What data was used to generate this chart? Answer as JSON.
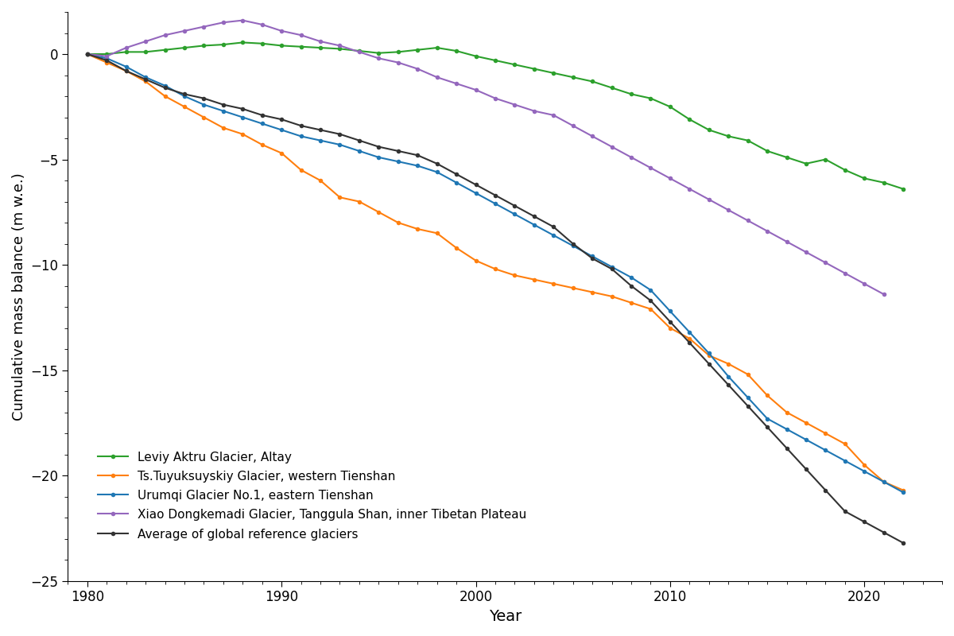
{
  "xlabel": "Year",
  "ylabel": "Cumulative mass balance (m w.e.)",
  "xlim": [
    1979,
    2024
  ],
  "ylim": [
    -25,
    2
  ],
  "yticks": [
    0,
    -5,
    -10,
    -15,
    -20,
    -25
  ],
  "xticks": [
    1980,
    1990,
    2000,
    2010,
    2020
  ],
  "background_color": "#ffffff",
  "series": [
    {
      "key": "leviy",
      "label": "Leviy Aktru Glacier, Altay",
      "color": "#2ca02c",
      "years": [
        1980,
        1981,
        1982,
        1983,
        1984,
        1985,
        1986,
        1987,
        1988,
        1989,
        1990,
        1991,
        1992,
        1993,
        1994,
        1995,
        1996,
        1997,
        1998,
        1999,
        2000,
        2001,
        2002,
        2003,
        2004,
        2005,
        2006,
        2007,
        2008,
        2009,
        2010,
        2011,
        2012,
        2013,
        2014,
        2015,
        2016,
        2017,
        2018,
        2019,
        2020,
        2021,
        2022
      ],
      "values": [
        0.0,
        0.0,
        0.1,
        0.1,
        0.2,
        0.3,
        0.4,
        0.45,
        0.55,
        0.5,
        0.4,
        0.35,
        0.3,
        0.25,
        0.15,
        0.05,
        0.1,
        0.2,
        0.3,
        0.15,
        -0.1,
        -0.3,
        -0.5,
        -0.7,
        -0.9,
        -1.1,
        -1.3,
        -1.6,
        -1.9,
        -2.1,
        -2.5,
        -3.1,
        -3.6,
        -3.9,
        -4.1,
        -4.6,
        -4.9,
        -5.2,
        -5.0,
        -5.5,
        -5.9,
        -6.1,
        -6.4
      ]
    },
    {
      "key": "tuyuk",
      "label": "Ts.Tuyuksuyskiy Glacier, western Tienshan",
      "color": "#ff7f0e",
      "years": [
        1980,
        1981,
        1982,
        1983,
        1984,
        1985,
        1986,
        1987,
        1988,
        1989,
        1990,
        1991,
        1992,
        1993,
        1994,
        1995,
        1996,
        1997,
        1998,
        1999,
        2000,
        2001,
        2002,
        2003,
        2004,
        2005,
        2006,
        2007,
        2008,
        2009,
        2010,
        2011,
        2012,
        2013,
        2014,
        2015,
        2016,
        2017,
        2018,
        2019,
        2020,
        2021,
        2022
      ],
      "values": [
        0.0,
        -0.4,
        -0.8,
        -1.3,
        -2.0,
        -2.5,
        -3.0,
        -3.5,
        -3.8,
        -4.3,
        -4.7,
        -5.5,
        -6.0,
        -6.8,
        -7.0,
        -7.5,
        -8.0,
        -8.3,
        -8.5,
        -9.2,
        -9.8,
        -10.2,
        -10.5,
        -10.7,
        -10.9,
        -11.1,
        -11.3,
        -11.5,
        -11.8,
        -12.1,
        -13.0,
        -13.5,
        -14.3,
        -14.7,
        -15.2,
        -16.2,
        -17.0,
        -17.5,
        -18.0,
        -18.5,
        -19.5,
        -20.3,
        -20.7
      ]
    },
    {
      "key": "urumqi",
      "label": "Urumqi Glacier No.1, eastern Tienshan",
      "color": "#1f77b4",
      "years": [
        1980,
        1981,
        1982,
        1983,
        1984,
        1985,
        1986,
        1987,
        1988,
        1989,
        1990,
        1991,
        1992,
        1993,
        1994,
        1995,
        1996,
        1997,
        1998,
        1999,
        2000,
        2001,
        2002,
        2003,
        2004,
        2005,
        2006,
        2007,
        2008,
        2009,
        2010,
        2011,
        2012,
        2013,
        2014,
        2015,
        2016,
        2017,
        2018,
        2019,
        2020,
        2021,
        2022
      ],
      "values": [
        0.0,
        -0.2,
        -0.6,
        -1.1,
        -1.5,
        -2.0,
        -2.4,
        -2.7,
        -3.0,
        -3.3,
        -3.6,
        -3.9,
        -4.1,
        -4.3,
        -4.6,
        -4.9,
        -5.1,
        -5.3,
        -5.6,
        -6.1,
        -6.6,
        -7.1,
        -7.6,
        -8.1,
        -8.6,
        -9.1,
        -9.6,
        -10.1,
        -10.6,
        -11.2,
        -12.2,
        -13.2,
        -14.2,
        -15.3,
        -16.3,
        -17.3,
        -17.8,
        -18.3,
        -18.8,
        -19.3,
        -19.8,
        -20.3,
        -20.8
      ]
    },
    {
      "key": "xiao",
      "label": "Xiao Dongkemadi Glacier, Tanggula Shan, inner Tibetan Plateau",
      "color": "#9467bd",
      "years": [
        1980,
        1981,
        1982,
        1983,
        1984,
        1985,
        1986,
        1987,
        1988,
        1989,
        1990,
        1991,
        1992,
        1993,
        1994,
        1995,
        1996,
        1997,
        1998,
        1999,
        2000,
        2001,
        2002,
        2003,
        2004,
        2005,
        2006,
        2007,
        2008,
        2009,
        2010,
        2011,
        2012,
        2013,
        2014,
        2015,
        2016,
        2017,
        2018,
        2019,
        2020,
        2021
      ],
      "values": [
        0.0,
        -0.1,
        0.3,
        0.6,
        0.9,
        1.1,
        1.3,
        1.5,
        1.6,
        1.4,
        1.1,
        0.9,
        0.6,
        0.4,
        0.1,
        -0.2,
        -0.4,
        -0.7,
        -1.1,
        -1.4,
        -1.7,
        -2.1,
        -2.4,
        -2.7,
        -2.9,
        -3.4,
        -3.9,
        -4.4,
        -4.9,
        -5.4,
        -5.9,
        -6.4,
        -6.9,
        -7.4,
        -7.9,
        -8.4,
        -8.9,
        -9.4,
        -9.9,
        -10.4,
        -10.9,
        -11.4
      ]
    },
    {
      "key": "global",
      "label": "Average of global reference glaciers",
      "color": "#333333",
      "years": [
        1980,
        1981,
        1982,
        1983,
        1984,
        1985,
        1986,
        1987,
        1988,
        1989,
        1990,
        1991,
        1992,
        1993,
        1994,
        1995,
        1996,
        1997,
        1998,
        1999,
        2000,
        2001,
        2002,
        2003,
        2004,
        2005,
        2006,
        2007,
        2008,
        2009,
        2010,
        2011,
        2012,
        2013,
        2014,
        2015,
        2016,
        2017,
        2018,
        2019,
        2020,
        2021,
        2022
      ],
      "values": [
        0.0,
        -0.3,
        -0.8,
        -1.2,
        -1.6,
        -1.9,
        -2.1,
        -2.4,
        -2.6,
        -2.9,
        -3.1,
        -3.4,
        -3.6,
        -3.8,
        -4.1,
        -4.4,
        -4.6,
        -4.8,
        -5.2,
        -5.7,
        -6.2,
        -6.7,
        -7.2,
        -7.7,
        -8.2,
        -9.0,
        -9.7,
        -10.2,
        -11.0,
        -11.7,
        -12.7,
        -13.7,
        -14.7,
        -15.7,
        -16.7,
        -17.7,
        -18.7,
        -19.7,
        -20.7,
        -21.7,
        -22.2,
        -22.7,
        -23.2
      ]
    }
  ]
}
